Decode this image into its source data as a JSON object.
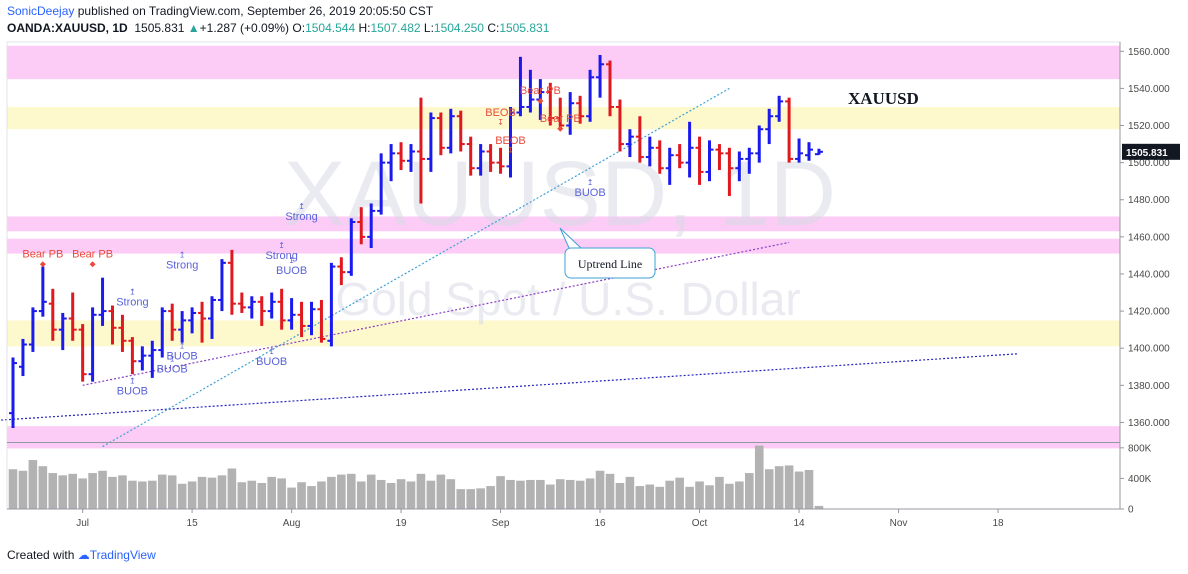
{
  "header": {
    "user": "SonicDeejay",
    "published": "published on TradingView.com, September 26, 2019 20:05:50 CST",
    "symbol": "OANDA:XAUUSD, 1D",
    "last": "1505.831",
    "change_arrow": "▲",
    "change": "+1.287 (+0.09%)",
    "o_label": "O:",
    "o_value": "1504.544",
    "h_label": "H:",
    "h_value": "1507.482",
    "l_label": "L:",
    "l_value": "1504.250",
    "c_label": "C:",
    "c_value": "1505.831"
  },
  "footer": {
    "created_with": "Created with",
    "brand": "TradingView"
  },
  "watermark": {
    "main": "XAUUSD, 1D",
    "sub": "Gold Spot / U.S. Dollar"
  },
  "colors": {
    "up": "#1a1aee",
    "down": "#e0191f",
    "zone_pink": "#fbc3f6",
    "zone_yellow": "#fdf8c8",
    "volume": "#b2b2b2",
    "trend_light": "#3ea1d6",
    "trend_purple": "#8a3ec2",
    "trend_navy": "#2323c0",
    "signal_blue": "#5a62d8",
    "signal_red": "#e84b3c"
  },
  "chart_data": {
    "type": "ohlc",
    "title": "XAUUSD",
    "ylim": [
      1350,
      1565
    ],
    "y_ticks": [
      1360,
      1380,
      1400,
      1420,
      1440,
      1460,
      1480,
      1500,
      1520,
      1540,
      1560
    ],
    "y_tick_labels": [
      "1360.000",
      "1380.000",
      "1400.000",
      "1420.000",
      "1440.000",
      "1460.000",
      "1480.000",
      "1500.000",
      "1520.000",
      "1540.000",
      "1560.000"
    ],
    "last_price_label": "1505.831",
    "x_ticks": [
      {
        "day": 7,
        "label": "Jul"
      },
      {
        "day": 18,
        "label": "15"
      },
      {
        "day": 28,
        "label": "Aug"
      },
      {
        "day": 39,
        "label": "19"
      },
      {
        "day": 49,
        "label": "Sep"
      },
      {
        "day": 59,
        "label": "16"
      },
      {
        "day": 69,
        "label": "Oct"
      },
      {
        "day": 79,
        "label": "14"
      },
      {
        "day": 89,
        "label": "Nov"
      },
      {
        "day": 99,
        "label": "18"
      }
    ],
    "volume_ticks": [
      {
        "v": 0,
        "label": "0"
      },
      {
        "v": 400000,
        "label": "400K"
      },
      {
        "v": 800000,
        "label": "800K"
      }
    ],
    "volume_max": 850000,
    "x_max_day": 100,
    "bars": [
      {
        "d": 0,
        "o": 1365,
        "h": 1395,
        "l": 1357,
        "c": 1392
      },
      {
        "d": 1,
        "o": 1390,
        "h": 1405,
        "l": 1385,
        "c": 1402
      },
      {
        "d": 2,
        "o": 1402,
        "h": 1422,
        "l": 1398,
        "c": 1420
      },
      {
        "d": 3,
        "o": 1420,
        "h": 1444,
        "l": 1417,
        "c": 1425
      },
      {
        "d": 4,
        "o": 1424,
        "h": 1432,
        "l": 1404,
        "c": 1410
      },
      {
        "d": 5,
        "o": 1410,
        "h": 1419,
        "l": 1399,
        "c": 1416
      },
      {
        "d": 6,
        "o": 1416,
        "h": 1430,
        "l": 1404,
        "c": 1410
      },
      {
        "d": 7,
        "o": 1410,
        "h": 1413,
        "l": 1382,
        "c": 1386
      },
      {
        "d": 8,
        "o": 1386,
        "h": 1422,
        "l": 1382,
        "c": 1418
      },
      {
        "d": 9,
        "o": 1418,
        "h": 1438,
        "l": 1412,
        "c": 1420
      },
      {
        "d": 10,
        "o": 1420,
        "h": 1423,
        "l": 1402,
        "c": 1411
      },
      {
        "d": 11,
        "o": 1411,
        "h": 1418,
        "l": 1398,
        "c": 1404
      },
      {
        "d": 12,
        "o": 1404,
        "h": 1406,
        "l": 1386,
        "c": 1393
      },
      {
        "d": 13,
        "o": 1393,
        "h": 1401,
        "l": 1388,
        "c": 1396
      },
      {
        "d": 14,
        "o": 1396,
        "h": 1404,
        "l": 1384,
        "c": 1399
      },
      {
        "d": 15,
        "o": 1399,
        "h": 1422,
        "l": 1395,
        "c": 1420
      },
      {
        "d": 16,
        "o": 1420,
        "h": 1424,
        "l": 1404,
        "c": 1410
      },
      {
        "d": 17,
        "o": 1410,
        "h": 1420,
        "l": 1403,
        "c": 1415
      },
      {
        "d": 18,
        "o": 1415,
        "h": 1422,
        "l": 1408,
        "c": 1419
      },
      {
        "d": 19,
        "o": 1419,
        "h": 1425,
        "l": 1403,
        "c": 1416
      },
      {
        "d": 20,
        "o": 1416,
        "h": 1428,
        "l": 1405,
        "c": 1426
      },
      {
        "d": 21,
        "o": 1426,
        "h": 1448,
        "l": 1420,
        "c": 1446
      },
      {
        "d": 22,
        "o": 1446,
        "h": 1453,
        "l": 1418,
        "c": 1424
      },
      {
        "d": 23,
        "o": 1424,
        "h": 1430,
        "l": 1419,
        "c": 1422
      },
      {
        "d": 24,
        "o": 1422,
        "h": 1428,
        "l": 1416,
        "c": 1425
      },
      {
        "d": 25,
        "o": 1425,
        "h": 1428,
        "l": 1412,
        "c": 1420
      },
      {
        "d": 26,
        "o": 1420,
        "h": 1430,
        "l": 1416,
        "c": 1425
      },
      {
        "d": 27,
        "o": 1425,
        "h": 1432,
        "l": 1410,
        "c": 1415
      },
      {
        "d": 28,
        "o": 1415,
        "h": 1427,
        "l": 1410,
        "c": 1418
      },
      {
        "d": 29,
        "o": 1418,
        "h": 1425,
        "l": 1406,
        "c": 1412
      },
      {
        "d": 30,
        "o": 1412,
        "h": 1425,
        "l": 1407,
        "c": 1421
      },
      {
        "d": 31,
        "o": 1421,
        "h": 1426,
        "l": 1403,
        "c": 1405
      },
      {
        "d": 32,
        "o": 1404,
        "h": 1446,
        "l": 1401,
        "c": 1444
      },
      {
        "d": 33,
        "o": 1444,
        "h": 1449,
        "l": 1434,
        "c": 1441
      },
      {
        "d": 34,
        "o": 1441,
        "h": 1470,
        "l": 1439,
        "c": 1468
      },
      {
        "d": 35,
        "o": 1468,
        "h": 1476,
        "l": 1456,
        "c": 1460
      },
      {
        "d": 36,
        "o": 1460,
        "h": 1478,
        "l": 1454,
        "c": 1474
      },
      {
        "d": 37,
        "o": 1474,
        "h": 1505,
        "l": 1472,
        "c": 1500
      },
      {
        "d": 38,
        "o": 1500,
        "h": 1510,
        "l": 1490,
        "c": 1505
      },
      {
        "d": 39,
        "o": 1505,
        "h": 1511,
        "l": 1496,
        "c": 1501
      },
      {
        "d": 40,
        "o": 1501,
        "h": 1510,
        "l": 1495,
        "c": 1506
      },
      {
        "d": 41,
        "o": 1506,
        "h": 1535,
        "l": 1478,
        "c": 1502
      },
      {
        "d": 42,
        "o": 1502,
        "h": 1527,
        "l": 1495,
        "c": 1524
      },
      {
        "d": 43,
        "o": 1524,
        "h": 1527,
        "l": 1504,
        "c": 1508
      },
      {
        "d": 44,
        "o": 1508,
        "h": 1529,
        "l": 1505,
        "c": 1525
      },
      {
        "d": 45,
        "o": 1525,
        "h": 1528,
        "l": 1506,
        "c": 1510
      },
      {
        "d": 46,
        "o": 1510,
        "h": 1514,
        "l": 1493,
        "c": 1497
      },
      {
        "d": 47,
        "o": 1497,
        "h": 1510,
        "l": 1493,
        "c": 1506
      },
      {
        "d": 48,
        "o": 1506,
        "h": 1510,
        "l": 1495,
        "c": 1500
      },
      {
        "d": 49,
        "o": 1500,
        "h": 1508,
        "l": 1494,
        "c": 1498
      },
      {
        "d": 50,
        "o": 1498,
        "h": 1530,
        "l": 1492,
        "c": 1527
      },
      {
        "d": 51,
        "o": 1527,
        "h": 1557,
        "l": 1525,
        "c": 1530
      },
      {
        "d": 52,
        "o": 1530,
        "h": 1550,
        "l": 1527,
        "c": 1534
      },
      {
        "d": 53,
        "o": 1534,
        "h": 1545,
        "l": 1523,
        "c": 1538
      },
      {
        "d": 54,
        "o": 1538,
        "h": 1543,
        "l": 1520,
        "c": 1524
      },
      {
        "d": 55,
        "o": 1524,
        "h": 1535,
        "l": 1518,
        "c": 1520
      },
      {
        "d": 56,
        "o": 1520,
        "h": 1538,
        "l": 1515,
        "c": 1532
      },
      {
        "d": 57,
        "o": 1532,
        "h": 1536,
        "l": 1521,
        "c": 1525
      },
      {
        "d": 58,
        "o": 1525,
        "h": 1550,
        "l": 1522,
        "c": 1546
      },
      {
        "d": 59,
        "o": 1546,
        "h": 1558,
        "l": 1535,
        "c": 1553
      },
      {
        "d": 60,
        "o": 1553,
        "h": 1555,
        "l": 1525,
        "c": 1530
      },
      {
        "d": 61,
        "o": 1530,
        "h": 1534,
        "l": 1506,
        "c": 1510
      },
      {
        "d": 62,
        "o": 1510,
        "h": 1518,
        "l": 1503,
        "c": 1514
      },
      {
        "d": 63,
        "o": 1514,
        "h": 1525,
        "l": 1500,
        "c": 1503
      },
      {
        "d": 64,
        "o": 1503,
        "h": 1514,
        "l": 1498,
        "c": 1508
      },
      {
        "d": 65,
        "o": 1508,
        "h": 1512,
        "l": 1494,
        "c": 1497
      },
      {
        "d": 66,
        "o": 1497,
        "h": 1508,
        "l": 1488,
        "c": 1504
      },
      {
        "d": 67,
        "o": 1504,
        "h": 1510,
        "l": 1497,
        "c": 1500
      },
      {
        "d": 68,
        "o": 1500,
        "h": 1522,
        "l": 1492,
        "c": 1508
      },
      {
        "d": 69,
        "o": 1508,
        "h": 1514,
        "l": 1488,
        "c": 1495
      },
      {
        "d": 70,
        "o": 1495,
        "h": 1512,
        "l": 1490,
        "c": 1507
      },
      {
        "d": 71,
        "o": 1507,
        "h": 1510,
        "l": 1496,
        "c": 1505
      },
      {
        "d": 72,
        "o": 1505,
        "h": 1508,
        "l": 1482,
        "c": 1497
      },
      {
        "d": 73,
        "o": 1497,
        "h": 1506,
        "l": 1490,
        "c": 1502
      },
      {
        "d": 74,
        "o": 1502,
        "h": 1508,
        "l": 1494,
        "c": 1505
      },
      {
        "d": 75,
        "o": 1505,
        "h": 1520,
        "l": 1500,
        "c": 1518
      },
      {
        "d": 76,
        "o": 1518,
        "h": 1529,
        "l": 1510,
        "c": 1525
      },
      {
        "d": 77,
        "o": 1525,
        "h": 1536,
        "l": 1522,
        "c": 1533
      },
      {
        "d": 78,
        "o": 1533,
        "h": 1535,
        "l": 1500,
        "c": 1502
      },
      {
        "d": 79,
        "o": 1502,
        "h": 1513,
        "l": 1500,
        "c": 1505
      },
      {
        "d": 80,
        "o": 1504,
        "h": 1511,
        "l": 1501,
        "c": 1507
      },
      {
        "d": 81,
        "o": 1504.544,
        "h": 1507.482,
        "l": 1504.25,
        "c": 1505.831
      }
    ],
    "volume": [
      520000,
      500000,
      640000,
      560000,
      470000,
      440000,
      460000,
      400000,
      470000,
      500000,
      420000,
      440000,
      370000,
      360000,
      370000,
      450000,
      440000,
      330000,
      360000,
      420000,
      410000,
      440000,
      530000,
      350000,
      370000,
      340000,
      420000,
      400000,
      280000,
      350000,
      300000,
      360000,
      420000,
      450000,
      460000,
      360000,
      450000,
      380000,
      340000,
      390000,
      360000,
      460000,
      370000,
      450000,
      390000,
      260000,
      260000,
      270000,
      300000,
      430000,
      380000,
      370000,
      380000,
      380000,
      320000,
      390000,
      380000,
      370000,
      400000,
      500000,
      460000,
      340000,
      420000,
      300000,
      320000,
      290000,
      370000,
      410000,
      290000,
      360000,
      310000,
      420000,
      330000,
      360000,
      470000,
      830000,
      520000,
      560000,
      570000,
      490000,
      510000,
      40000
    ],
    "zones": [
      {
        "y1": 1545,
        "y2": 1563,
        "kind": "pink"
      },
      {
        "y1": 1518,
        "y2": 1530,
        "kind": "yellow"
      },
      {
        "y1": 1463,
        "y2": 1471,
        "kind": "pink"
      },
      {
        "y1": 1451,
        "y2": 1459,
        "kind": "pink"
      },
      {
        "y1": 1401,
        "y2": 1415,
        "kind": "yellow"
      },
      {
        "y1": 1346,
        "y2": 1358,
        "kind": "pink"
      }
    ],
    "trendlines": [
      {
        "x1": -2,
        "y1": 1361,
        "x2": 101,
        "y2": 1397,
        "kind": "navy"
      },
      {
        "x1": 7,
        "y1": 1380,
        "x2": 78,
        "y2": 1457,
        "kind": "purple"
      },
      {
        "x1": 9,
        "y1": 1347,
        "x2": 72,
        "y2": 1540,
        "kind": "light"
      }
    ],
    "annotations": {
      "symbol_label": "XAUUSD",
      "uptrend_label": "Uptrend Line",
      "signals": [
        {
          "d": 3,
          "y": 1449,
          "text": "Bear PB",
          "color": "red",
          "arrow": "diamond"
        },
        {
          "d": 8,
          "y": 1449,
          "text": "Bear PB",
          "color": "red",
          "arrow": "diamond"
        },
        {
          "d": 12,
          "y": 1430,
          "text": "Strong",
          "color": "blue",
          "arrow": "up"
        },
        {
          "d": 12,
          "y": 1382,
          "text": "BUOB",
          "color": "blue",
          "arrow": "up"
        },
        {
          "d": 17,
          "y": 1450,
          "text": "Strong",
          "color": "blue",
          "arrow": "up"
        },
        {
          "d": 17,
          "y": 1401,
          "text": "BUOB",
          "color": "blue",
          "arrow": "up"
        },
        {
          "d": 16,
          "y": 1394,
          "text": "BUOB",
          "color": "blue",
          "arrow": "up"
        },
        {
          "d": 27,
          "y": 1455,
          "text": "Strong",
          "color": "blue",
          "arrow": "up"
        },
        {
          "d": 28,
          "y": 1447,
          "text": "BUOB",
          "color": "blue",
          "arrow": "up"
        },
        {
          "d": 26,
          "y": 1398,
          "text": "BUOB",
          "color": "blue",
          "arrow": "up"
        },
        {
          "d": 29,
          "y": 1476,
          "text": "Strong",
          "color": "blue",
          "arrow": "up"
        },
        {
          "d": 49,
          "y": 1525,
          "text": "BEOB",
          "color": "red",
          "arrow": "down"
        },
        {
          "d": 50,
          "y": 1510,
          "text": "BEOB",
          "color": "red",
          "arrow": "down"
        },
        {
          "d": 53,
          "y": 1537,
          "text": "Bear PB",
          "color": "red",
          "arrow": "diamond"
        },
        {
          "d": 55,
          "y": 1522,
          "text": "Bear PB",
          "color": "red",
          "arrow": "diamond"
        },
        {
          "d": 58,
          "y": 1489,
          "text": "BUOB",
          "color": "blue",
          "arrow": "up"
        }
      ]
    }
  }
}
